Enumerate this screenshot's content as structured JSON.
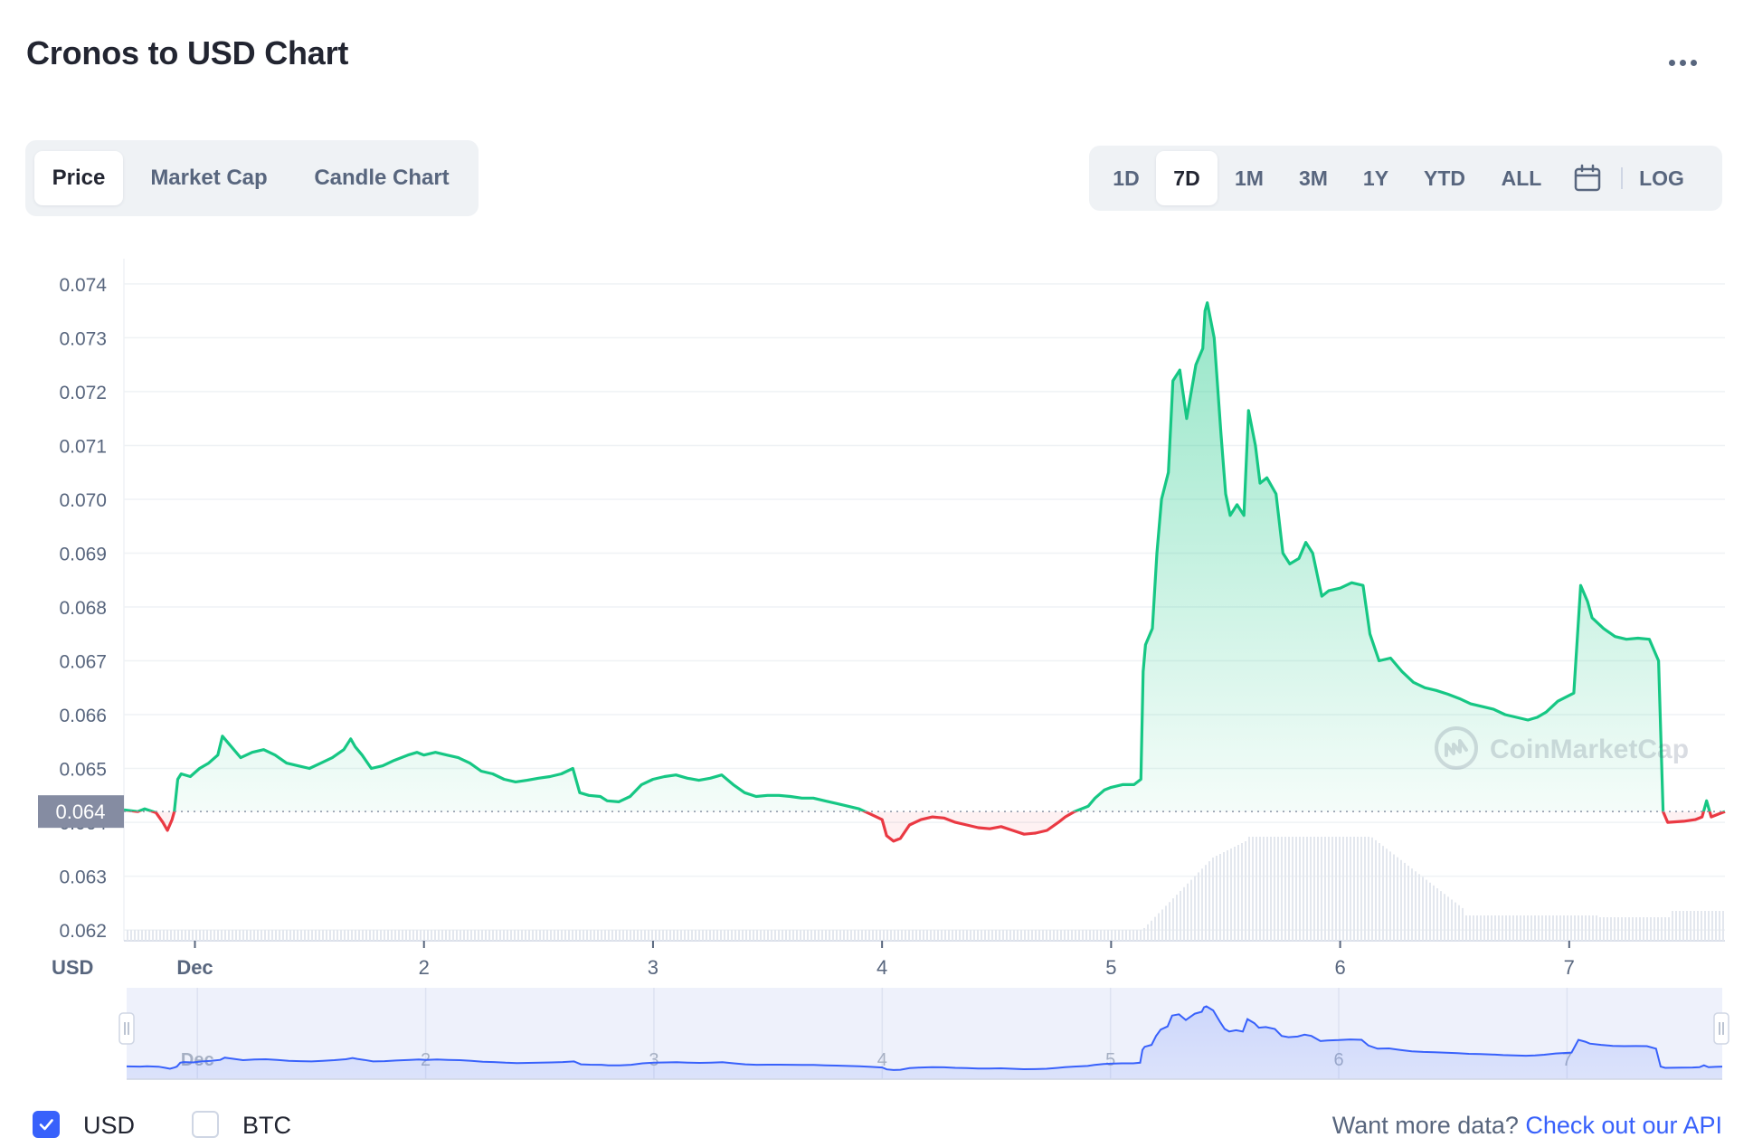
{
  "title": "Cronos to USD Chart",
  "view_tabs": [
    "Price",
    "Market Cap",
    "Candle Chart"
  ],
  "active_view_tab": "Price",
  "ranges": [
    "1D",
    "7D",
    "1M",
    "3M",
    "1Y",
    "YTD",
    "ALL"
  ],
  "active_range": "7D",
  "log_label": "LOG",
  "icons": {
    "more": "more-dots-icon",
    "calendar": "calendar-icon",
    "check": "check-icon"
  },
  "colors": {
    "up": "#16c784",
    "down": "#ea3943",
    "accent": "#3861fb",
    "text": "#222531",
    "muted": "#58667e",
    "navigator_line": "#3861fb"
  },
  "watermark": "CoinMarketCap",
  "currency_toggles": [
    {
      "label": "USD",
      "checked": true
    },
    {
      "label": "BTC",
      "checked": false
    }
  ],
  "footer": {
    "text": "Want more data?",
    "link": "Check out our API"
  },
  "chart_data": {
    "type": "area",
    "ylabel": "USD",
    "ylim": [
      0.0618,
      0.0742
    ],
    "yticks": [
      "0.074",
      "0.073",
      "0.072",
      "0.071",
      "0.070",
      "0.069",
      "0.068",
      "0.067",
      "0.066",
      "0.065",
      "0.064",
      "0.063",
      "0.062"
    ],
    "xticks": [
      {
        "label": "Dec",
        "x": 0.0
      },
      {
        "label": "2",
        "x": 1.0
      },
      {
        "label": "3",
        "x": 2.0
      },
      {
        "label": "4",
        "x": 3.0
      },
      {
        "label": "5",
        "x": 4.0
      },
      {
        "label": "6",
        "x": 5.0
      },
      {
        "label": "7",
        "x": 6.0
      }
    ],
    "xlim": [
      -0.31,
      6.68
    ],
    "baseline": 0.0642,
    "baseline_label": "0.064",
    "series": [
      {
        "points": [
          [
            -0.31,
            0.06423
          ],
          [
            -0.25,
            0.0642
          ],
          [
            -0.22,
            0.06425
          ],
          [
            -0.17,
            0.06418
          ],
          [
            -0.14,
            0.064
          ],
          [
            -0.12,
            0.06385
          ],
          [
            -0.1,
            0.06405
          ],
          [
            -0.09,
            0.0642
          ],
          [
            -0.075,
            0.0648
          ],
          [
            -0.06,
            0.0649
          ],
          [
            -0.02,
            0.06485
          ],
          [
            0.02,
            0.065
          ],
          [
            0.06,
            0.0651
          ],
          [
            0.1,
            0.06525
          ],
          [
            0.12,
            0.0656
          ],
          [
            0.15,
            0.06545
          ],
          [
            0.2,
            0.0652
          ],
          [
            0.25,
            0.0653
          ],
          [
            0.3,
            0.06535
          ],
          [
            0.35,
            0.06525
          ],
          [
            0.4,
            0.0651
          ],
          [
            0.45,
            0.06505
          ],
          [
            0.5,
            0.065
          ],
          [
            0.55,
            0.0651
          ],
          [
            0.6,
            0.0652
          ],
          [
            0.65,
            0.06535
          ],
          [
            0.68,
            0.06555
          ],
          [
            0.7,
            0.0654
          ],
          [
            0.73,
            0.06525
          ],
          [
            0.77,
            0.065
          ],
          [
            0.82,
            0.06505
          ],
          [
            0.87,
            0.06515
          ],
          [
            0.93,
            0.06525
          ],
          [
            0.97,
            0.0653
          ],
          [
            1.0,
            0.06525
          ],
          [
            1.05,
            0.0653
          ],
          [
            1.1,
            0.06525
          ],
          [
            1.15,
            0.0652
          ],
          [
            1.2,
            0.0651
          ],
          [
            1.25,
            0.06495
          ],
          [
            1.3,
            0.0649
          ],
          [
            1.35,
            0.0648
          ],
          [
            1.4,
            0.06475
          ],
          [
            1.45,
            0.06478
          ],
          [
            1.5,
            0.06482
          ],
          [
            1.55,
            0.06485
          ],
          [
            1.6,
            0.0649
          ],
          [
            1.65,
            0.065
          ],
          [
            1.68,
            0.06455
          ],
          [
            1.72,
            0.0645
          ],
          [
            1.77,
            0.06448
          ],
          [
            1.8,
            0.0644
          ],
          [
            1.85,
            0.06438
          ],
          [
            1.9,
            0.06448
          ],
          [
            1.95,
            0.0647
          ],
          [
            2.0,
            0.0648
          ],
          [
            2.05,
            0.06485
          ],
          [
            2.1,
            0.06488
          ],
          [
            2.15,
            0.06482
          ],
          [
            2.2,
            0.06478
          ],
          [
            2.25,
            0.06482
          ],
          [
            2.3,
            0.06488
          ],
          [
            2.35,
            0.0647
          ],
          [
            2.4,
            0.06455
          ],
          [
            2.45,
            0.06448
          ],
          [
            2.5,
            0.0645
          ],
          [
            2.55,
            0.0645
          ],
          [
            2.6,
            0.06448
          ],
          [
            2.65,
            0.06445
          ],
          [
            2.7,
            0.06445
          ],
          [
            2.75,
            0.0644
          ],
          [
            2.8,
            0.06435
          ],
          [
            2.85,
            0.0643
          ],
          [
            2.9,
            0.06425
          ],
          [
            2.95,
            0.06415
          ],
          [
            3.0,
            0.06405
          ],
          [
            3.02,
            0.06375
          ],
          [
            3.05,
            0.06365
          ],
          [
            3.08,
            0.0637
          ],
          [
            3.12,
            0.06395
          ],
          [
            3.17,
            0.06405
          ],
          [
            3.22,
            0.0641
          ],
          [
            3.27,
            0.06408
          ],
          [
            3.32,
            0.064
          ],
          [
            3.37,
            0.06395
          ],
          [
            3.42,
            0.0639
          ],
          [
            3.47,
            0.06388
          ],
          [
            3.52,
            0.06392
          ],
          [
            3.57,
            0.06385
          ],
          [
            3.62,
            0.06378
          ],
          [
            3.67,
            0.0638
          ],
          [
            3.72,
            0.06385
          ],
          [
            3.77,
            0.064
          ],
          [
            3.8,
            0.0641
          ],
          [
            3.84,
            0.0642
          ],
          [
            3.87,
            0.06425
          ],
          [
            3.9,
            0.0643
          ],
          [
            3.93,
            0.06445
          ],
          [
            3.97,
            0.0646
          ],
          [
            4.0,
            0.06465
          ],
          [
            4.05,
            0.0647
          ],
          [
            4.1,
            0.0647
          ],
          [
            4.13,
            0.0648
          ],
          [
            4.14,
            0.0668
          ],
          [
            4.15,
            0.0673
          ],
          [
            4.18,
            0.0676
          ],
          [
            4.2,
            0.069
          ],
          [
            4.22,
            0.07
          ],
          [
            4.25,
            0.0705
          ],
          [
            4.27,
            0.0722
          ],
          [
            4.3,
            0.0724
          ],
          [
            4.33,
            0.0715
          ],
          [
            4.37,
            0.0725
          ],
          [
            4.4,
            0.0728
          ],
          [
            4.41,
            0.0735
          ],
          [
            4.42,
            0.07365
          ],
          [
            4.45,
            0.073
          ],
          [
            4.48,
            0.0712
          ],
          [
            4.5,
            0.0701
          ],
          [
            4.52,
            0.0697
          ],
          [
            4.55,
            0.0699
          ],
          [
            4.58,
            0.0697
          ],
          [
            4.6,
            0.07165
          ],
          [
            4.63,
            0.071
          ],
          [
            4.65,
            0.0703
          ],
          [
            4.68,
            0.0704
          ],
          [
            4.72,
            0.0701
          ],
          [
            4.75,
            0.069
          ],
          [
            4.78,
            0.0688
          ],
          [
            4.82,
            0.0689
          ],
          [
            4.85,
            0.0692
          ],
          [
            4.88,
            0.069
          ],
          [
            4.92,
            0.0682
          ],
          [
            4.95,
            0.0683
          ],
          [
            5.0,
            0.06835
          ],
          [
            5.05,
            0.06845
          ],
          [
            5.1,
            0.0684
          ],
          [
            5.13,
            0.0675
          ],
          [
            5.17,
            0.067
          ],
          [
            5.22,
            0.06705
          ],
          [
            5.27,
            0.0668
          ],
          [
            5.32,
            0.0666
          ],
          [
            5.37,
            0.0665
          ],
          [
            5.42,
            0.06645
          ],
          [
            5.47,
            0.06638
          ],
          [
            5.52,
            0.0663
          ],
          [
            5.57,
            0.0662
          ],
          [
            5.62,
            0.06615
          ],
          [
            5.67,
            0.0661
          ],
          [
            5.72,
            0.066
          ],
          [
            5.77,
            0.06595
          ],
          [
            5.82,
            0.0659
          ],
          [
            5.86,
            0.06595
          ],
          [
            5.9,
            0.06605
          ],
          [
            5.95,
            0.06625
          ],
          [
            6.02,
            0.0664
          ],
          [
            6.05,
            0.0684
          ],
          [
            6.08,
            0.0681
          ],
          [
            6.1,
            0.0678
          ],
          [
            6.15,
            0.0676
          ],
          [
            6.2,
            0.06745
          ],
          [
            6.25,
            0.0674
          ],
          [
            6.3,
            0.06742
          ],
          [
            6.35,
            0.0674
          ],
          [
            6.39,
            0.067
          ],
          [
            6.41,
            0.0642
          ],
          [
            6.43,
            0.064
          ],
          [
            6.5,
            0.06402
          ],
          [
            6.55,
            0.06405
          ],
          [
            6.58,
            0.0641
          ],
          [
            6.6,
            0.0644
          ],
          [
            6.62,
            0.0641
          ],
          [
            6.65,
            0.06415
          ],
          [
            6.68,
            0.0642
          ]
        ]
      }
    ]
  }
}
